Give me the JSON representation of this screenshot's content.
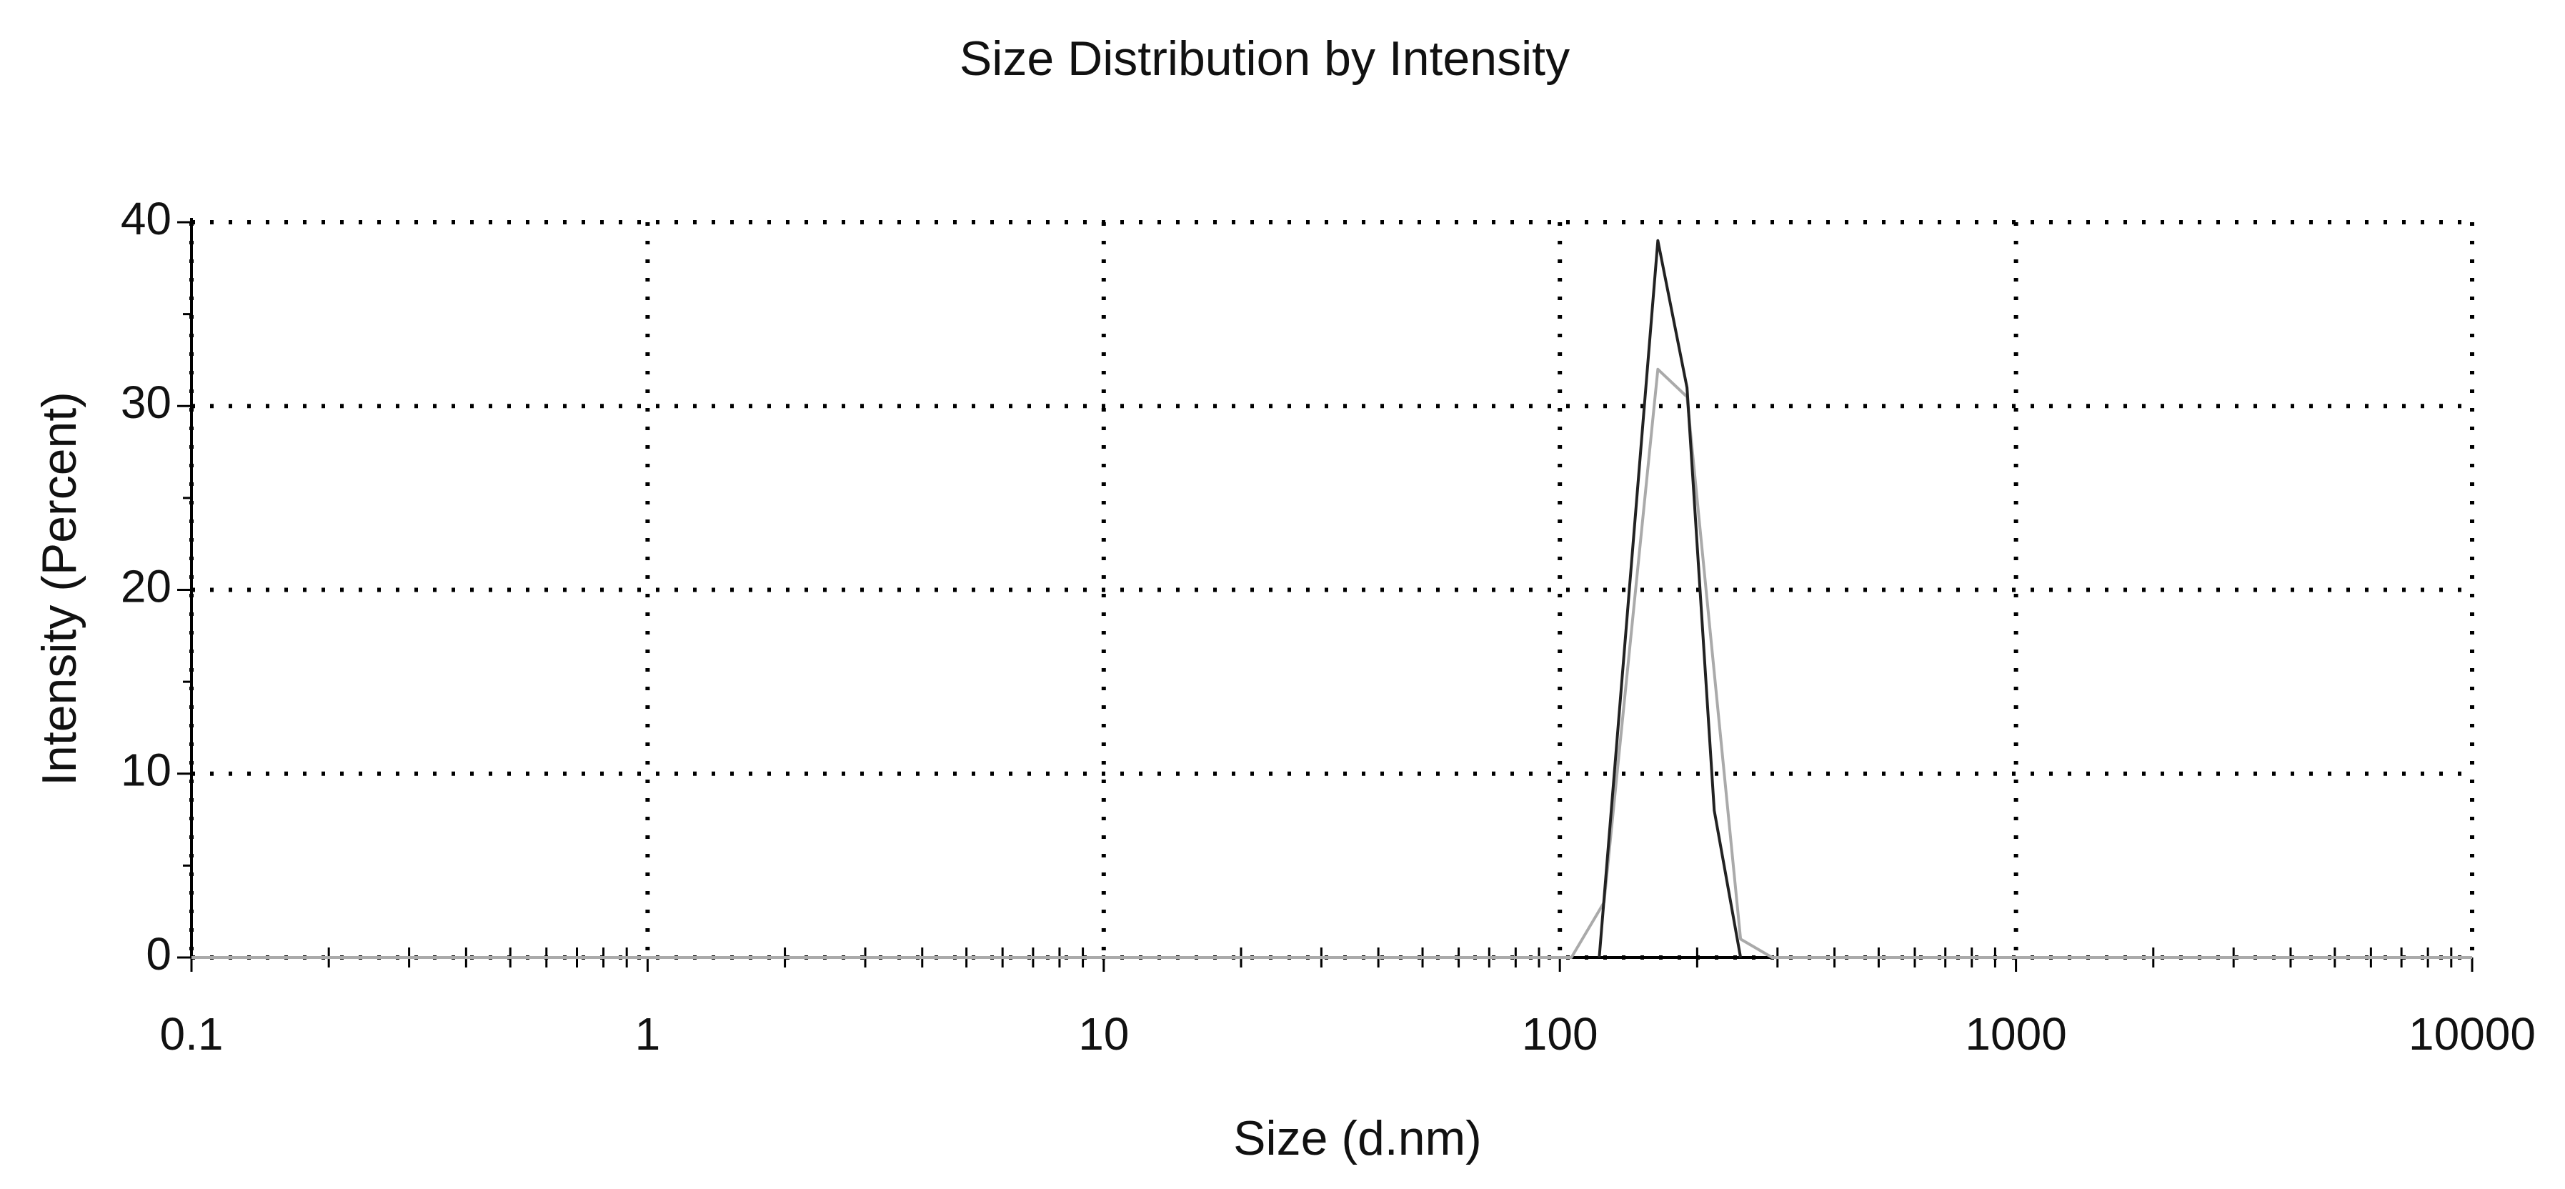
{
  "chart_data": {
    "type": "line",
    "title": "Size Distribution by Intensity",
    "x_label": "Size (d.nm)",
    "y_label": "Intensity (Percent)",
    "xscale": "log",
    "grid": true,
    "xlim": [
      0.1,
      10000
    ],
    "ylim": [
      0,
      40
    ],
    "xticks": [
      0.1,
      1,
      10,
      100,
      1000,
      10000
    ],
    "yticks": [
      0,
      10,
      20,
      30,
      40
    ],
    "xminorticks": [
      0.2,
      0.3,
      0.4,
      0.5,
      0.6,
      0.7,
      0.8,
      0.9,
      2,
      3,
      4,
      5,
      6,
      7,
      8,
      9,
      20,
      30,
      40,
      50,
      60,
      70,
      80,
      90,
      200,
      300,
      400,
      500,
      600,
      700,
      800,
      900,
      2000,
      3000,
      4000,
      5000,
      6000,
      7000,
      8000,
      9000
    ],
    "yminorticks": [
      5,
      15,
      25,
      35
    ],
    "series": [
      {
        "color": "#aaaaaa",
        "x": [
          0.1,
          106,
          125,
          164,
          190,
          249,
          292,
          10000
        ],
        "values": [
          0,
          0,
          3,
          32,
          30.5,
          1,
          0,
          0
        ]
      },
      {
        "color": "#222222",
        "x": [
          122,
          164,
          190,
          218,
          249
        ],
        "values": [
          0,
          39,
          31,
          8,
          0
        ]
      }
    ]
  }
}
